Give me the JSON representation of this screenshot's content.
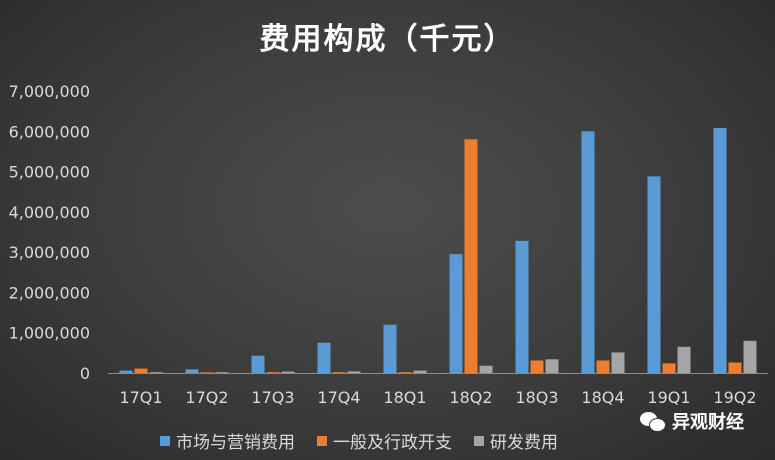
{
  "chart_data": {
    "type": "bar",
    "title": "费用构成（千元）",
    "categories": [
      "17Q1",
      "17Q2",
      "17Q3",
      "17Q4",
      "18Q1",
      "18Q2",
      "18Q3",
      "18Q4",
      "19Q1",
      "19Q2"
    ],
    "series": [
      {
        "name": "市场与营销费用",
        "color": "#5b9bd5",
        "values": [
          60000,
          90000,
          430000,
          750000,
          1200000,
          2950000,
          3280000,
          6000000,
          4880000,
          6080000
        ]
      },
      {
        "name": "一般及行政开支",
        "color": "#ed7d31",
        "values": [
          110000,
          15000,
          20000,
          20000,
          20000,
          5800000,
          310000,
          310000,
          240000,
          260000
        ]
      },
      {
        "name": "研发费用",
        "color": "#a5a5a5",
        "values": [
          20000,
          20000,
          35000,
          40000,
          60000,
          180000,
          340000,
          510000,
          650000,
          800000
        ]
      }
    ],
    "ylim": [
      0,
      7000000
    ],
    "yticks": [
      "0",
      "1,000,000",
      "2,000,000",
      "3,000,000",
      "4,000,000",
      "5,000,000",
      "6,000,000",
      "7,000,000"
    ],
    "grid": false,
    "legend_position": "bottom"
  },
  "watermark": {
    "text": "异观财经",
    "icon": "wechat-icon"
  }
}
